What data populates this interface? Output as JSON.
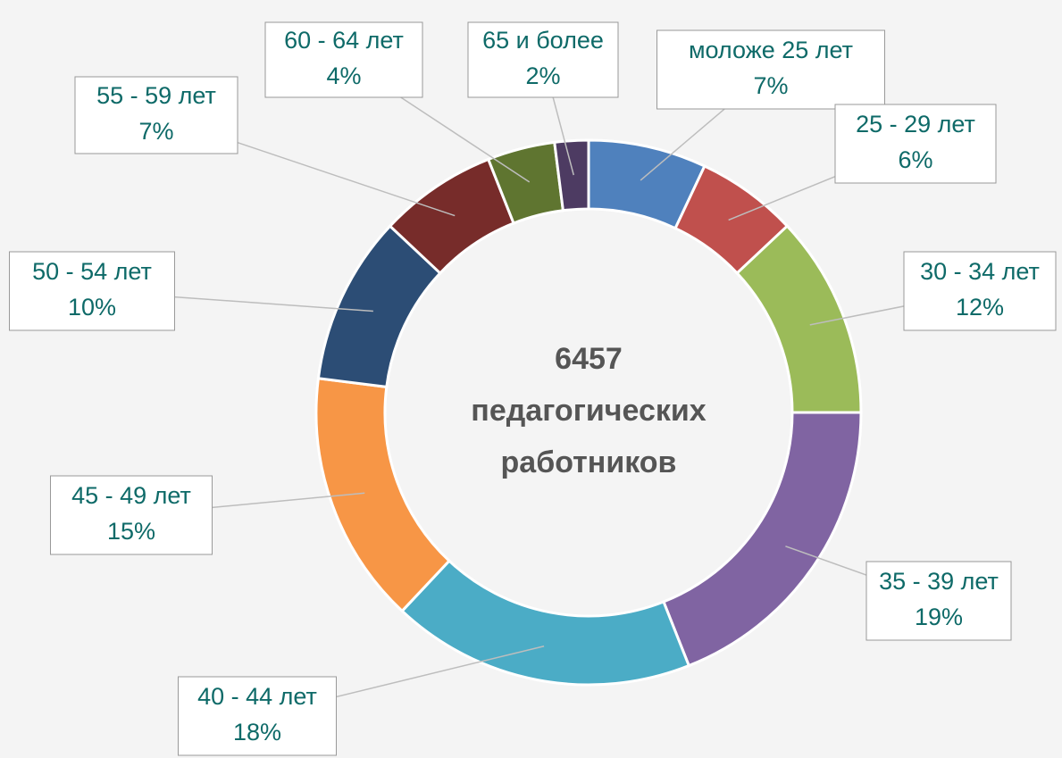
{
  "chart_data": {
    "type": "donut",
    "categories": [
      "моложе 25 лет",
      "25 - 29 лет",
      "30 - 34 лет",
      "35 - 39 лет",
      "40 - 44 лет",
      "45 - 49 лет",
      "50 - 54 лет",
      "55 - 59 лет",
      "60 - 64 лет",
      "65 и более"
    ],
    "values": [
      7,
      6,
      12,
      19,
      18,
      15,
      10,
      7,
      4,
      2
    ],
    "value_labels": [
      "7%",
      "6%",
      "12%",
      "19%",
      "18%",
      "15%",
      "10%",
      "7%",
      "4%",
      "2%"
    ],
    "colors": [
      "#4f81bd",
      "#c0504d",
      "#9bbb59",
      "#8064a2",
      "#4bacc6",
      "#f79646",
      "#2c4d75",
      "#772c2a",
      "#5f7530",
      "#4d3b62"
    ],
    "center_text": [
      "6457",
      "педагогических",
      "работников"
    ]
  }
}
